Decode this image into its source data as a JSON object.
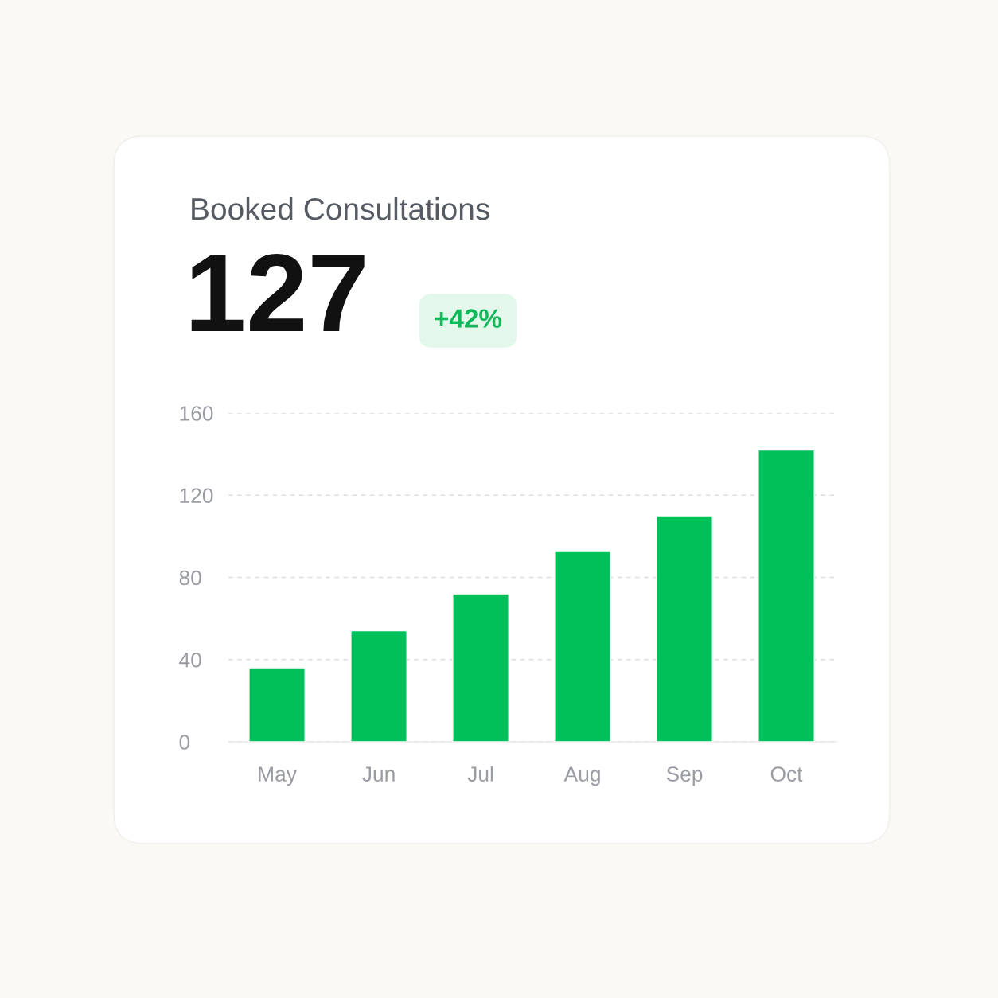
{
  "chart_data": {
    "type": "bar",
    "title": "Booked Consultations",
    "annotations": [
      "127",
      "+42%"
    ],
    "categories": [
      "May",
      "Jun",
      "Jul",
      "Aug",
      "Sep",
      "Oct"
    ],
    "values": [
      36,
      54,
      72,
      93,
      110,
      142
    ],
    "color": "#00c05a",
    "ylim": [
      0,
      160
    ],
    "yticks": [
      0,
      40,
      80,
      120,
      160
    ],
    "grid": "y"
  }
}
